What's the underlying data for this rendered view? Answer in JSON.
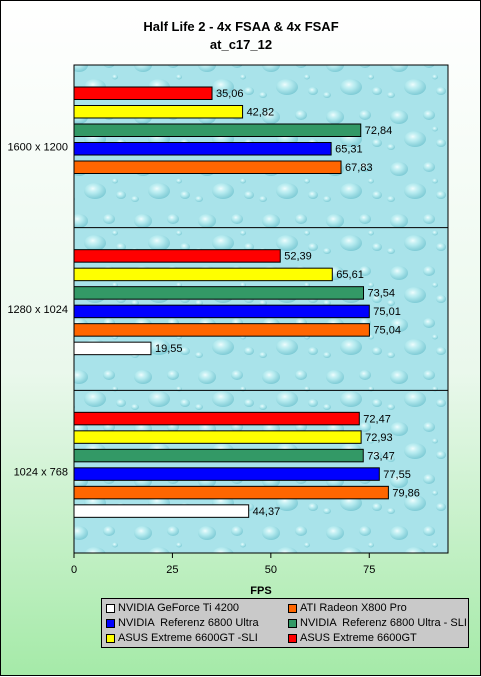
{
  "chart_data": {
    "type": "bar",
    "orientation": "horizontal",
    "title": "Half Life 2 - 4x FSAA & 4x FSAF",
    "subtitle": "at_c17_12",
    "xlabel": "FPS",
    "ylabel": "",
    "xlim": [
      0,
      95
    ],
    "xticks": [
      0,
      25,
      50,
      75
    ],
    "categories": [
      "1600 x 1200",
      "1280 x 1024",
      "1024 x 768"
    ],
    "grid": false,
    "legend_position": "bottom",
    "series": [
      {
        "name": "ASUS Extreme 6600GT",
        "color": "#ff0000",
        "values": [
          35.06,
          52.39,
          72.47
        ],
        "labels": [
          "35,06",
          "52,39",
          "72,47"
        ]
      },
      {
        "name": "ASUS Extreme 6600GT -SLI",
        "color": "#ffff00",
        "values": [
          42.82,
          65.61,
          72.93
        ],
        "labels": [
          "42,82",
          "65,61",
          "72,93"
        ]
      },
      {
        "name": "NVIDIA  Referenz 6800 Ultra - SLI",
        "color": "#339966",
        "values": [
          72.84,
          73.54,
          73.47
        ],
        "labels": [
          "72,84",
          "73,54",
          "73,47"
        ]
      },
      {
        "name": "NVIDIA  Referenz 6800 Ultra",
        "color": "#0000ff",
        "values": [
          65.31,
          75.01,
          77.55
        ],
        "labels": [
          "65,31",
          "75,01",
          "77,55"
        ]
      },
      {
        "name": "ATI Radeon X800 Pro",
        "color": "#ff6600",
        "values": [
          67.83,
          75.04,
          79.86
        ],
        "labels": [
          "67,83",
          "75,04",
          "79,86"
        ]
      },
      {
        "name": "NVIDIA GeForce Ti 4200",
        "color": "#ffffff",
        "values": [
          null,
          19.55,
          44.37
        ],
        "labels": [
          "",
          "19,55",
          "44,37"
        ]
      }
    ],
    "legend_order": [
      "NVIDIA GeForce Ti 4200",
      "ATI Radeon X800 Pro",
      "NVIDIA  Referenz 6800 Ultra",
      "NVIDIA  Referenz 6800 Ultra - SLI",
      "ASUS Extreme 6600GT -SLI",
      "ASUS Extreme 6600GT"
    ]
  }
}
